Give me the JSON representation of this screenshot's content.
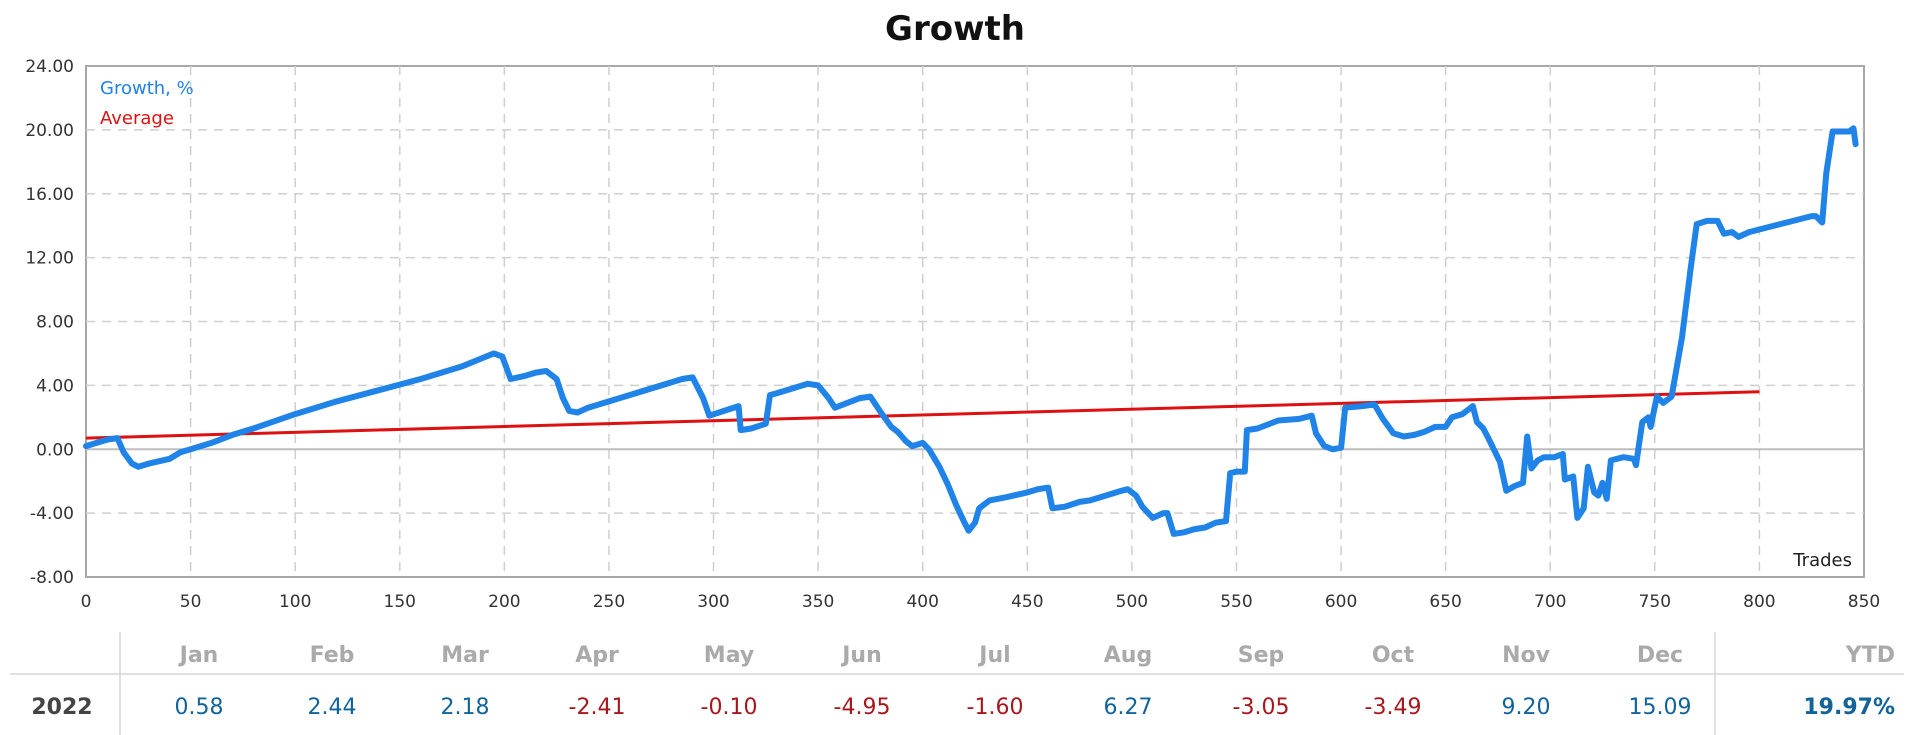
{
  "chart_data": {
    "type": "line",
    "title": "Growth",
    "xlabel": "Trades",
    "ylabel": "",
    "xlim": [
      0,
      850
    ],
    "ylim": [
      -8,
      24
    ],
    "x_ticks": [
      0,
      50,
      100,
      150,
      200,
      250,
      300,
      350,
      400,
      450,
      500,
      550,
      600,
      650,
      700,
      750,
      800,
      850
    ],
    "y_ticks": [
      24,
      20,
      16,
      12,
      8,
      4,
      0,
      -4,
      -8
    ],
    "y_tick_labels": [
      "24.00",
      "20.00",
      "16.00",
      "12.00",
      "8.00",
      "4.00",
      "0.00",
      "-4.00",
      "-8.00"
    ],
    "grid": true,
    "legend_position": "top-left",
    "series": [
      {
        "name": "Growth, %",
        "color": "#1f83e8",
        "points": [
          [
            0,
            0.2
          ],
          [
            5,
            0.4
          ],
          [
            10,
            0.6
          ],
          [
            15,
            0.7
          ],
          [
            18,
            -0.2
          ],
          [
            22,
            -0.9
          ],
          [
            25,
            -1.1
          ],
          [
            30,
            -0.9
          ],
          [
            40,
            -0.6
          ],
          [
            45,
            -0.2
          ],
          [
            50,
            0.0
          ],
          [
            60,
            0.4
          ],
          [
            70,
            0.9
          ],
          [
            80,
            1.3
          ],
          [
            100,
            2.2
          ],
          [
            120,
            3.0
          ],
          [
            140,
            3.7
          ],
          [
            160,
            4.4
          ],
          [
            180,
            5.2
          ],
          [
            195,
            6.0
          ],
          [
            199,
            5.8
          ],
          [
            203,
            4.4
          ],
          [
            210,
            4.6
          ],
          [
            215,
            4.8
          ],
          [
            220,
            4.9
          ],
          [
            225,
            4.4
          ],
          [
            228,
            3.2
          ],
          [
            231,
            2.4
          ],
          [
            235,
            2.3
          ],
          [
            240,
            2.6
          ],
          [
            260,
            3.4
          ],
          [
            280,
            4.2
          ],
          [
            285,
            4.4
          ],
          [
            290,
            4.5
          ],
          [
            295,
            3.2
          ],
          [
            298,
            2.1
          ],
          [
            305,
            2.4
          ],
          [
            312,
            2.7
          ],
          [
            313,
            1.2
          ],
          [
            318,
            1.3
          ],
          [
            325,
            1.6
          ],
          [
            327,
            3.4
          ],
          [
            330,
            3.5
          ],
          [
            340,
            3.9
          ],
          [
            345,
            4.1
          ],
          [
            350,
            4.0
          ],
          [
            355,
            3.2
          ],
          [
            358,
            2.6
          ],
          [
            370,
            3.2
          ],
          [
            375,
            3.3
          ],
          [
            380,
            2.3
          ],
          [
            385,
            1.4
          ],
          [
            388,
            1.1
          ],
          [
            392,
            0.5
          ],
          [
            395,
            0.2
          ],
          [
            400,
            0.4
          ],
          [
            403,
            0.0
          ],
          [
            408,
            -1.1
          ],
          [
            412,
            -2.2
          ],
          [
            416,
            -3.5
          ],
          [
            420,
            -4.6
          ],
          [
            422,
            -5.1
          ],
          [
            425,
            -4.6
          ],
          [
            427,
            -3.7
          ],
          [
            432,
            -3.2
          ],
          [
            440,
            -3.0
          ],
          [
            450,
            -2.7
          ],
          [
            455,
            -2.5
          ],
          [
            460,
            -2.4
          ],
          [
            462,
            -3.7
          ],
          [
            468,
            -3.6
          ],
          [
            475,
            -3.3
          ],
          [
            480,
            -3.2
          ],
          [
            490,
            -2.8
          ],
          [
            495,
            -2.6
          ],
          [
            498,
            -2.5
          ],
          [
            502,
            -2.9
          ],
          [
            505,
            -3.6
          ],
          [
            510,
            -4.3
          ],
          [
            515,
            -4.0
          ],
          [
            517,
            -4.0
          ],
          [
            520,
            -5.3
          ],
          [
            525,
            -5.2
          ],
          [
            530,
            -5.0
          ],
          [
            535,
            -4.9
          ],
          [
            540,
            -4.6
          ],
          [
            545,
            -4.5
          ],
          [
            547,
            -1.5
          ],
          [
            550,
            -1.4
          ],
          [
            554,
            -1.4
          ],
          [
            555,
            1.2
          ],
          [
            560,
            1.3
          ],
          [
            570,
            1.8
          ],
          [
            580,
            1.9
          ],
          [
            586,
            2.1
          ],
          [
            588,
            1.0
          ],
          [
            592,
            0.2
          ],
          [
            596,
            0.0
          ],
          [
            600,
            0.1
          ],
          [
            602,
            2.6
          ],
          [
            610,
            2.7
          ],
          [
            616,
            2.8
          ],
          [
            620,
            1.9
          ],
          [
            625,
            1.0
          ],
          [
            630,
            0.8
          ],
          [
            635,
            0.9
          ],
          [
            640,
            1.1
          ],
          [
            645,
            1.4
          ],
          [
            650,
            1.4
          ],
          [
            653,
            2.0
          ],
          [
            658,
            2.2
          ],
          [
            663,
            2.7
          ],
          [
            665,
            1.7
          ],
          [
            668,
            1.3
          ],
          [
            670,
            0.8
          ],
          [
            673,
            0.0
          ],
          [
            676,
            -0.8
          ],
          [
            679,
            -2.6
          ],
          [
            683,
            -2.3
          ],
          [
            687,
            -2.1
          ],
          [
            689,
            0.8
          ],
          [
            691,
            -1.2
          ],
          [
            694,
            -0.7
          ],
          [
            697,
            -0.5
          ],
          [
            702,
            -0.5
          ],
          [
            706,
            -0.3
          ],
          [
            707,
            -1.9
          ],
          [
            711,
            -1.7
          ],
          [
            713,
            -4.3
          ],
          [
            716,
            -3.7
          ],
          [
            718,
            -1.1
          ],
          [
            721,
            -2.7
          ],
          [
            723,
            -2.9
          ],
          [
            725,
            -2.1
          ],
          [
            727,
            -3.1
          ],
          [
            729,
            -0.7
          ],
          [
            735,
            -0.5
          ],
          [
            740,
            -0.6
          ],
          [
            741,
            -1.0
          ],
          [
            744,
            1.7
          ],
          [
            747,
            2.0
          ],
          [
            748,
            1.4
          ],
          [
            751,
            3.3
          ],
          [
            754,
            2.9
          ],
          [
            758,
            3.3
          ],
          [
            763,
            7.0
          ],
          [
            767,
            11.2
          ],
          [
            770,
            14.1
          ],
          [
            775,
            14.3
          ],
          [
            780,
            14.3
          ],
          [
            783,
            13.5
          ],
          [
            787,
            13.6
          ],
          [
            790,
            13.3
          ],
          [
            795,
            13.6
          ],
          [
            810,
            14.1
          ],
          [
            825,
            14.6
          ],
          [
            827,
            14.6
          ],
          [
            830,
            14.2
          ],
          [
            832,
            17.3
          ],
          [
            835,
            19.9
          ],
          [
            840,
            19.9
          ],
          [
            843,
            19.9
          ],
          [
            845,
            20.1
          ],
          [
            846,
            19.1
          ]
        ]
      },
      {
        "name": "Average",
        "color": "#dd1111",
        "points": [
          [
            0,
            0.7
          ],
          [
            800,
            3.6
          ]
        ]
      }
    ]
  },
  "table": {
    "months": [
      "Jan",
      "Feb",
      "Mar",
      "Apr",
      "May",
      "Jun",
      "Jul",
      "Aug",
      "Sep",
      "Oct",
      "Nov",
      "Dec"
    ],
    "ytd_label": "YTD",
    "rows": [
      {
        "year": "2022",
        "values": [
          "0.58",
          "2.44",
          "2.18",
          "-2.41",
          "-0.10",
          "-4.95",
          "-1.60",
          "6.27",
          "-3.05",
          "-3.49",
          "9.20",
          "15.09"
        ],
        "ytd": "19.97%"
      }
    ],
    "positive_color": "#11639a",
    "negative_color": "#a8171c"
  }
}
